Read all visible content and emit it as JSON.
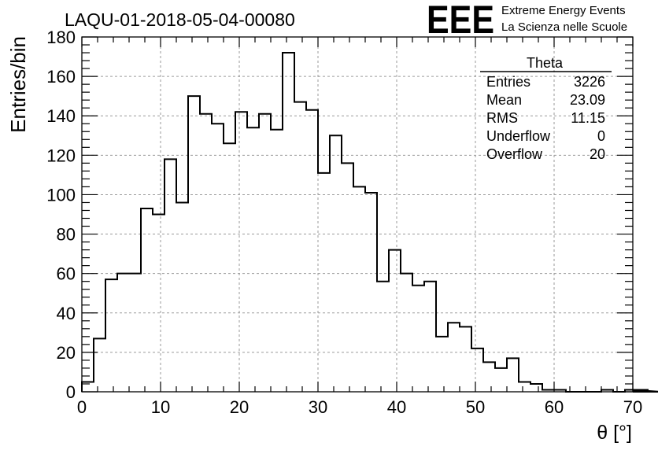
{
  "chart_data": {
    "type": "histogram",
    "title": "LAQU-01-2018-05-04-00080",
    "xlabel": "θ [°]",
    "ylabel": "Entries/bin",
    "xlim": [
      0,
      70
    ],
    "ylim": [
      0,
      180
    ],
    "bin_width": 1.5,
    "xticks": [
      "0",
      "10",
      "20",
      "30",
      "40",
      "50",
      "60",
      "70"
    ],
    "yticks": [
      "0",
      "20",
      "40",
      "60",
      "80",
      "100",
      "120",
      "140",
      "160",
      "180"
    ],
    "grid": true,
    "values": [
      5,
      27,
      57,
      60,
      60,
      93,
      90,
      118,
      96,
      150,
      141,
      136,
      126,
      142,
      134,
      141,
      133,
      172,
      147,
      143,
      111,
      130,
      116,
      104,
      101,
      56,
      72,
      60,
      54,
      56,
      28,
      35,
      33,
      22,
      15,
      12,
      17,
      5,
      4,
      1,
      1,
      0,
      0,
      0,
      1,
      0,
      1,
      0,
      1,
      0
    ],
    "stats_box": {
      "title": "Theta",
      "rows": [
        {
          "label": "Entries",
          "value": "3226"
        },
        {
          "label": "Mean",
          "value": "23.09"
        },
        {
          "label": "RMS",
          "value": "11.15"
        },
        {
          "label": "Underflow",
          "value": "0"
        },
        {
          "label": "Overflow",
          "value": "20"
        }
      ]
    }
  },
  "logo": {
    "text": "EEE",
    "line1": "Extreme Energy Events",
    "line2": "La Scienza nelle Scuole",
    "color": "#1a1ae6"
  },
  "colors": {
    "histogram": "#000000",
    "grid": "#9a9a9a"
  }
}
